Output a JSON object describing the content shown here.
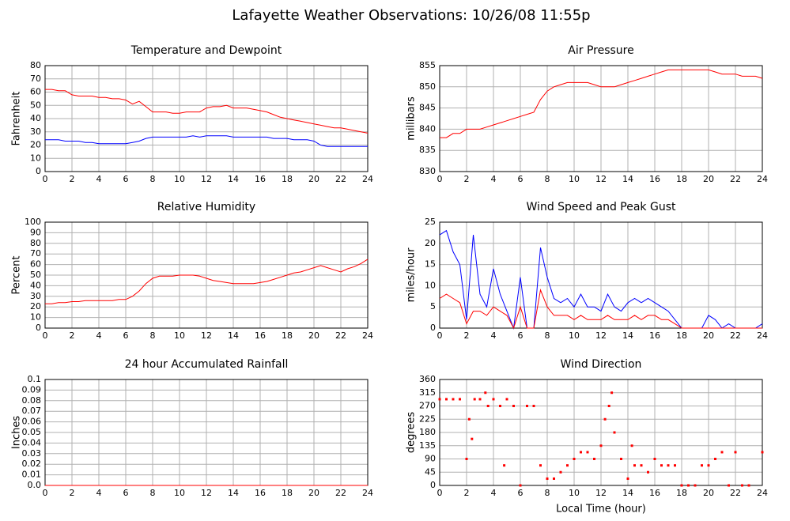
{
  "title": "Lafayette Weather Observations: 10/26/08 11:55p",
  "chart_data": [
    {
      "type": "line",
      "title": "Temperature and Dewpoint",
      "ylabel": "Fahrenheit",
      "grid": true,
      "x": [
        0,
        0.5,
        1,
        1.5,
        2,
        2.5,
        3,
        3.5,
        4,
        4.5,
        5,
        5.5,
        6,
        6.5,
        7,
        7.5,
        8,
        8.5,
        9,
        9.5,
        10,
        10.5,
        11,
        11.5,
        12,
        12.5,
        13,
        13.5,
        14,
        14.5,
        15,
        15.5,
        16,
        16.5,
        17,
        17.5,
        18,
        18.5,
        19,
        19.5,
        20,
        20.5,
        21,
        21.5,
        22,
        22.5,
        23,
        23.5,
        24
      ],
      "series": [
        {
          "color": "#ff0000",
          "values": [
            62,
            62,
            61,
            61,
            58,
            57,
            57,
            57,
            56,
            56,
            55,
            55,
            54,
            51,
            53,
            49,
            45,
            45,
            45,
            44,
            44,
            45,
            45,
            45,
            48,
            49,
            49,
            50,
            48,
            48,
            48,
            47,
            46,
            45,
            43,
            41,
            40,
            39,
            38,
            37,
            36,
            35,
            34,
            33,
            33,
            32,
            31,
            30,
            29
          ]
        },
        {
          "color": "#0000ff",
          "values": [
            24,
            24,
            24,
            23,
            23,
            23,
            22,
            22,
            21,
            21,
            21,
            21,
            21,
            22,
            23,
            25,
            26,
            26,
            26,
            26,
            26,
            26,
            27,
            26,
            27,
            27,
            27,
            27,
            26,
            26,
            26,
            26,
            26,
            26,
            25,
            25,
            25,
            24,
            24,
            24,
            23,
            20,
            19,
            19,
            19,
            19,
            19,
            19,
            19
          ]
        }
      ],
      "xlim": [
        0,
        24
      ],
      "xticks": [
        0,
        2,
        4,
        6,
        8,
        10,
        12,
        14,
        16,
        18,
        20,
        22,
        24
      ],
      "ylim": [
        0,
        80
      ],
      "yticks": [
        0,
        10,
        20,
        30,
        40,
        50,
        60,
        70,
        80
      ]
    },
    {
      "type": "line",
      "title": "Air Pressure",
      "ylabel": "millibars",
      "grid": true,
      "x": [
        0,
        0.5,
        1,
        1.5,
        2,
        2.5,
        3,
        3.5,
        4,
        4.5,
        5,
        5.5,
        6,
        6.5,
        7,
        7.5,
        8,
        8.5,
        9,
        9.5,
        10,
        10.5,
        11,
        11.5,
        12,
        12.5,
        13,
        13.5,
        14,
        14.5,
        15,
        15.5,
        16,
        16.5,
        17,
        17.5,
        18,
        18.5,
        19,
        19.5,
        20,
        20.5,
        21,
        21.5,
        22,
        22.5,
        23,
        23.5,
        24
      ],
      "series": [
        {
          "color": "#ff0000",
          "values": [
            838,
            838,
            839,
            839,
            840,
            840,
            840,
            840.5,
            841,
            841.5,
            842,
            842.5,
            843,
            843.5,
            844,
            847,
            849,
            850,
            850.5,
            851,
            851,
            851,
            851,
            850.5,
            850,
            850,
            850,
            850.5,
            851,
            851.5,
            852,
            852.5,
            853,
            853.5,
            854,
            854,
            854,
            854,
            854,
            854,
            854,
            853.5,
            853,
            853,
            853,
            852.5,
            852.5,
            852.5,
            852
          ]
        }
      ],
      "xlim": [
        0,
        24
      ],
      "xticks": [
        0,
        2,
        4,
        6,
        8,
        10,
        12,
        14,
        16,
        18,
        20,
        22,
        24
      ],
      "ylim": [
        830,
        855
      ],
      "yticks": [
        830,
        835,
        840,
        845,
        850,
        855
      ]
    },
    {
      "type": "line",
      "title": "Relative Humidity",
      "ylabel": "Percent",
      "grid": true,
      "x": [
        0,
        0.5,
        1,
        1.5,
        2,
        2.5,
        3,
        3.5,
        4,
        4.5,
        5,
        5.5,
        6,
        6.5,
        7,
        7.5,
        8,
        8.5,
        9,
        9.5,
        10,
        10.5,
        11,
        11.5,
        12,
        12.5,
        13,
        13.5,
        14,
        14.5,
        15,
        15.5,
        16,
        16.5,
        17,
        17.5,
        18,
        18.5,
        19,
        19.5,
        20,
        20.5,
        21,
        21.5,
        22,
        22.5,
        23,
        23.5,
        24
      ],
      "series": [
        {
          "color": "#ff0000",
          "values": [
            23,
            23,
            24,
            24,
            25,
            25,
            26,
            26,
            26,
            26,
            26,
            27,
            27,
            30,
            35,
            42,
            47,
            49,
            49,
            49,
            50,
            50,
            50,
            49,
            47,
            45,
            44,
            43,
            42,
            42,
            42,
            42,
            43,
            44,
            46,
            48,
            50,
            52,
            53,
            55,
            57,
            59,
            57,
            55,
            53,
            56,
            58,
            61,
            65
          ]
        }
      ],
      "xlim": [
        0,
        24
      ],
      "xticks": [
        0,
        2,
        4,
        6,
        8,
        10,
        12,
        14,
        16,
        18,
        20,
        22,
        24
      ],
      "ylim": [
        0,
        100
      ],
      "yticks": [
        0,
        10,
        20,
        30,
        40,
        50,
        60,
        70,
        80,
        90,
        100
      ]
    },
    {
      "type": "line",
      "title": "Wind Speed and Peak Gust",
      "ylabel": "miles/hour",
      "grid": true,
      "x": [
        0,
        0.5,
        1,
        1.5,
        2,
        2.5,
        3,
        3.5,
        4,
        4.5,
        5,
        5.5,
        6,
        6.5,
        7,
        7.5,
        8,
        8.5,
        9,
        9.5,
        10,
        10.5,
        11,
        11.5,
        12,
        12.5,
        13,
        13.5,
        14,
        14.5,
        15,
        15.5,
        16,
        16.5,
        17,
        17.5,
        18,
        18.5,
        19,
        19.5,
        20,
        20.5,
        21,
        21.5,
        22,
        22.5,
        23,
        23.5,
        24
      ],
      "series": [
        {
          "color": "#0000ff",
          "values": [
            22,
            23,
            18,
            15,
            2,
            22,
            8,
            5,
            14,
            8,
            4,
            0,
            12,
            0,
            0,
            19,
            12,
            7,
            6,
            7,
            5,
            8,
            5,
            5,
            4,
            8,
            5,
            4,
            6,
            7,
            6,
            7,
            6,
            5,
            4,
            2,
            0,
            0,
            0,
            0,
            3,
            2,
            0,
            1,
            0,
            0,
            0,
            0,
            1
          ]
        },
        {
          "color": "#ff0000",
          "values": [
            7,
            8,
            7,
            6,
            1,
            4,
            4,
            3,
            5,
            4,
            3,
            0,
            5,
            0,
            0,
            9,
            5,
            3,
            3,
            3,
            2,
            3,
            2,
            2,
            2,
            3,
            2,
            2,
            2,
            3,
            2,
            3,
            3,
            2,
            2,
            1,
            0,
            0,
            0,
            0,
            0,
            0,
            0,
            0,
            0,
            0,
            0,
            0,
            0
          ]
        }
      ],
      "xlim": [
        0,
        24
      ],
      "xticks": [
        0,
        2,
        4,
        6,
        8,
        10,
        12,
        14,
        16,
        18,
        20,
        22,
        24
      ],
      "ylim": [
        0,
        25
      ],
      "yticks": [
        0,
        5,
        10,
        15,
        20,
        25
      ]
    },
    {
      "type": "line",
      "title": "24 hour Accumulated Rainfall",
      "ylabel": "Inches",
      "grid": true,
      "x": [
        0,
        24
      ],
      "series": [
        {
          "color": "#ff0000",
          "values": [
            0,
            0
          ]
        }
      ],
      "xlim": [
        0,
        24
      ],
      "xticks": [
        0,
        2,
        4,
        6,
        8,
        10,
        12,
        14,
        16,
        18,
        20,
        22,
        24
      ],
      "ylim": [
        0,
        0.1
      ],
      "yticks": [
        {
          "value": 0,
          "label": "0.0"
        },
        0.01,
        0.02,
        0.03,
        0.04,
        0.05,
        0.06,
        0.07,
        0.08,
        0.09,
        0.1
      ]
    },
    {
      "type": "scatter",
      "title": "Wind Direction",
      "ylabel": "degrees",
      "xlabel": "Local Time (hour)",
      "grid": true,
      "x": [
        0,
        0.5,
        1,
        1.5,
        2,
        2.2,
        2.4,
        2.6,
        3,
        3.4,
        3.6,
        4,
        4.5,
        4.8,
        5,
        5.5,
        6,
        6.5,
        7,
        7.5,
        8,
        8.5,
        9,
        9.5,
        10,
        10.5,
        11,
        11.5,
        12,
        12.3,
        12.6,
        12.8,
        13,
        13.5,
        14,
        14.3,
        14.5,
        15,
        15.5,
        16,
        16.5,
        17,
        17.5,
        18,
        18.5,
        19,
        19.5,
        20,
        20.5,
        21,
        21.5,
        22,
        22.5,
        23,
        24
      ],
      "series": [
        {
          "color": "#ff0000",
          "values": [
            293,
            293,
            293,
            293,
            90,
            225,
            158,
            293,
            293,
            315,
            270,
            293,
            270,
            68,
            293,
            270,
            0,
            270,
            270,
            68,
            23,
            23,
            45,
            68,
            90,
            113,
            113,
            90,
            135,
            225,
            270,
            315,
            180,
            90,
            23,
            135,
            68,
            68,
            45,
            90,
            68,
            68,
            68,
            0,
            0,
            0,
            68,
            68,
            90,
            113,
            0,
            113,
            0,
            0,
            113
          ]
        }
      ],
      "xlim": [
        0,
        24
      ],
      "xticks": [
        0,
        2,
        4,
        6,
        8,
        10,
        12,
        14,
        16,
        18,
        20,
        22,
        24
      ],
      "ylim": [
        0,
        360
      ],
      "yticks": [
        0,
        45,
        90,
        135,
        180,
        225,
        270,
        315,
        360
      ]
    }
  ]
}
